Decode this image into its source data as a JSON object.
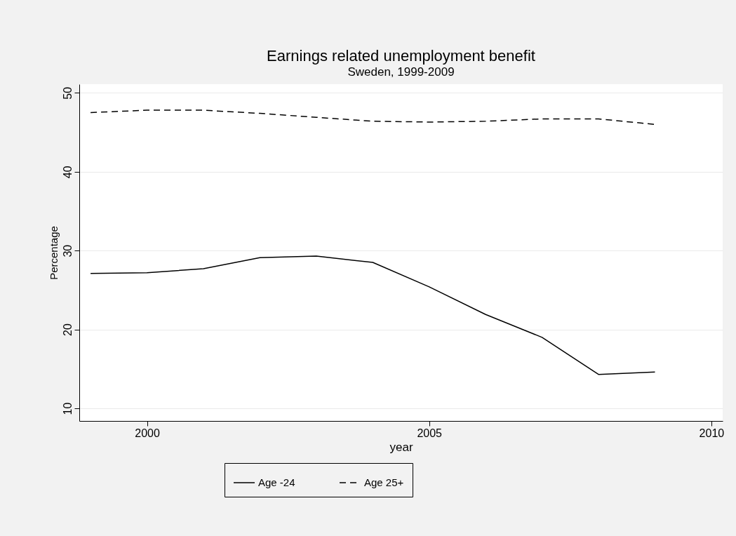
{
  "chart_data": {
    "type": "line",
    "title": "Earnings related unemployment benefit",
    "subtitle": "Sweden, 1999-2009",
    "xlabel": "year",
    "ylabel": "Percentage",
    "x": [
      1999,
      2000,
      2001,
      2002,
      2003,
      2004,
      2005,
      2006,
      2007,
      2008,
      2009
    ],
    "series": [
      {
        "name": "Age -24",
        "color": "#000000",
        "line_style": "solid",
        "values": [
          27.1,
          27.2,
          27.7,
          29.1,
          29.3,
          28.5,
          25.4,
          21.9,
          19.0,
          14.3,
          14.6
        ]
      },
      {
        "name": "Age 25+",
        "color": "#000000",
        "line_style": "dashed",
        "values": [
          47.5,
          47.8,
          47.8,
          47.4,
          46.9,
          46.4,
          46.3,
          46.4,
          46.7,
          46.7,
          46.0
        ]
      }
    ],
    "xlim": [
      1998.8,
      2010.2
    ],
    "xticks": [
      2000,
      2005,
      2010
    ],
    "ylim": [
      8.4,
      51.1
    ],
    "yticks": [
      10,
      20,
      30,
      40,
      50
    ],
    "grid": "y",
    "legend": "bottom",
    "marker": "none"
  }
}
